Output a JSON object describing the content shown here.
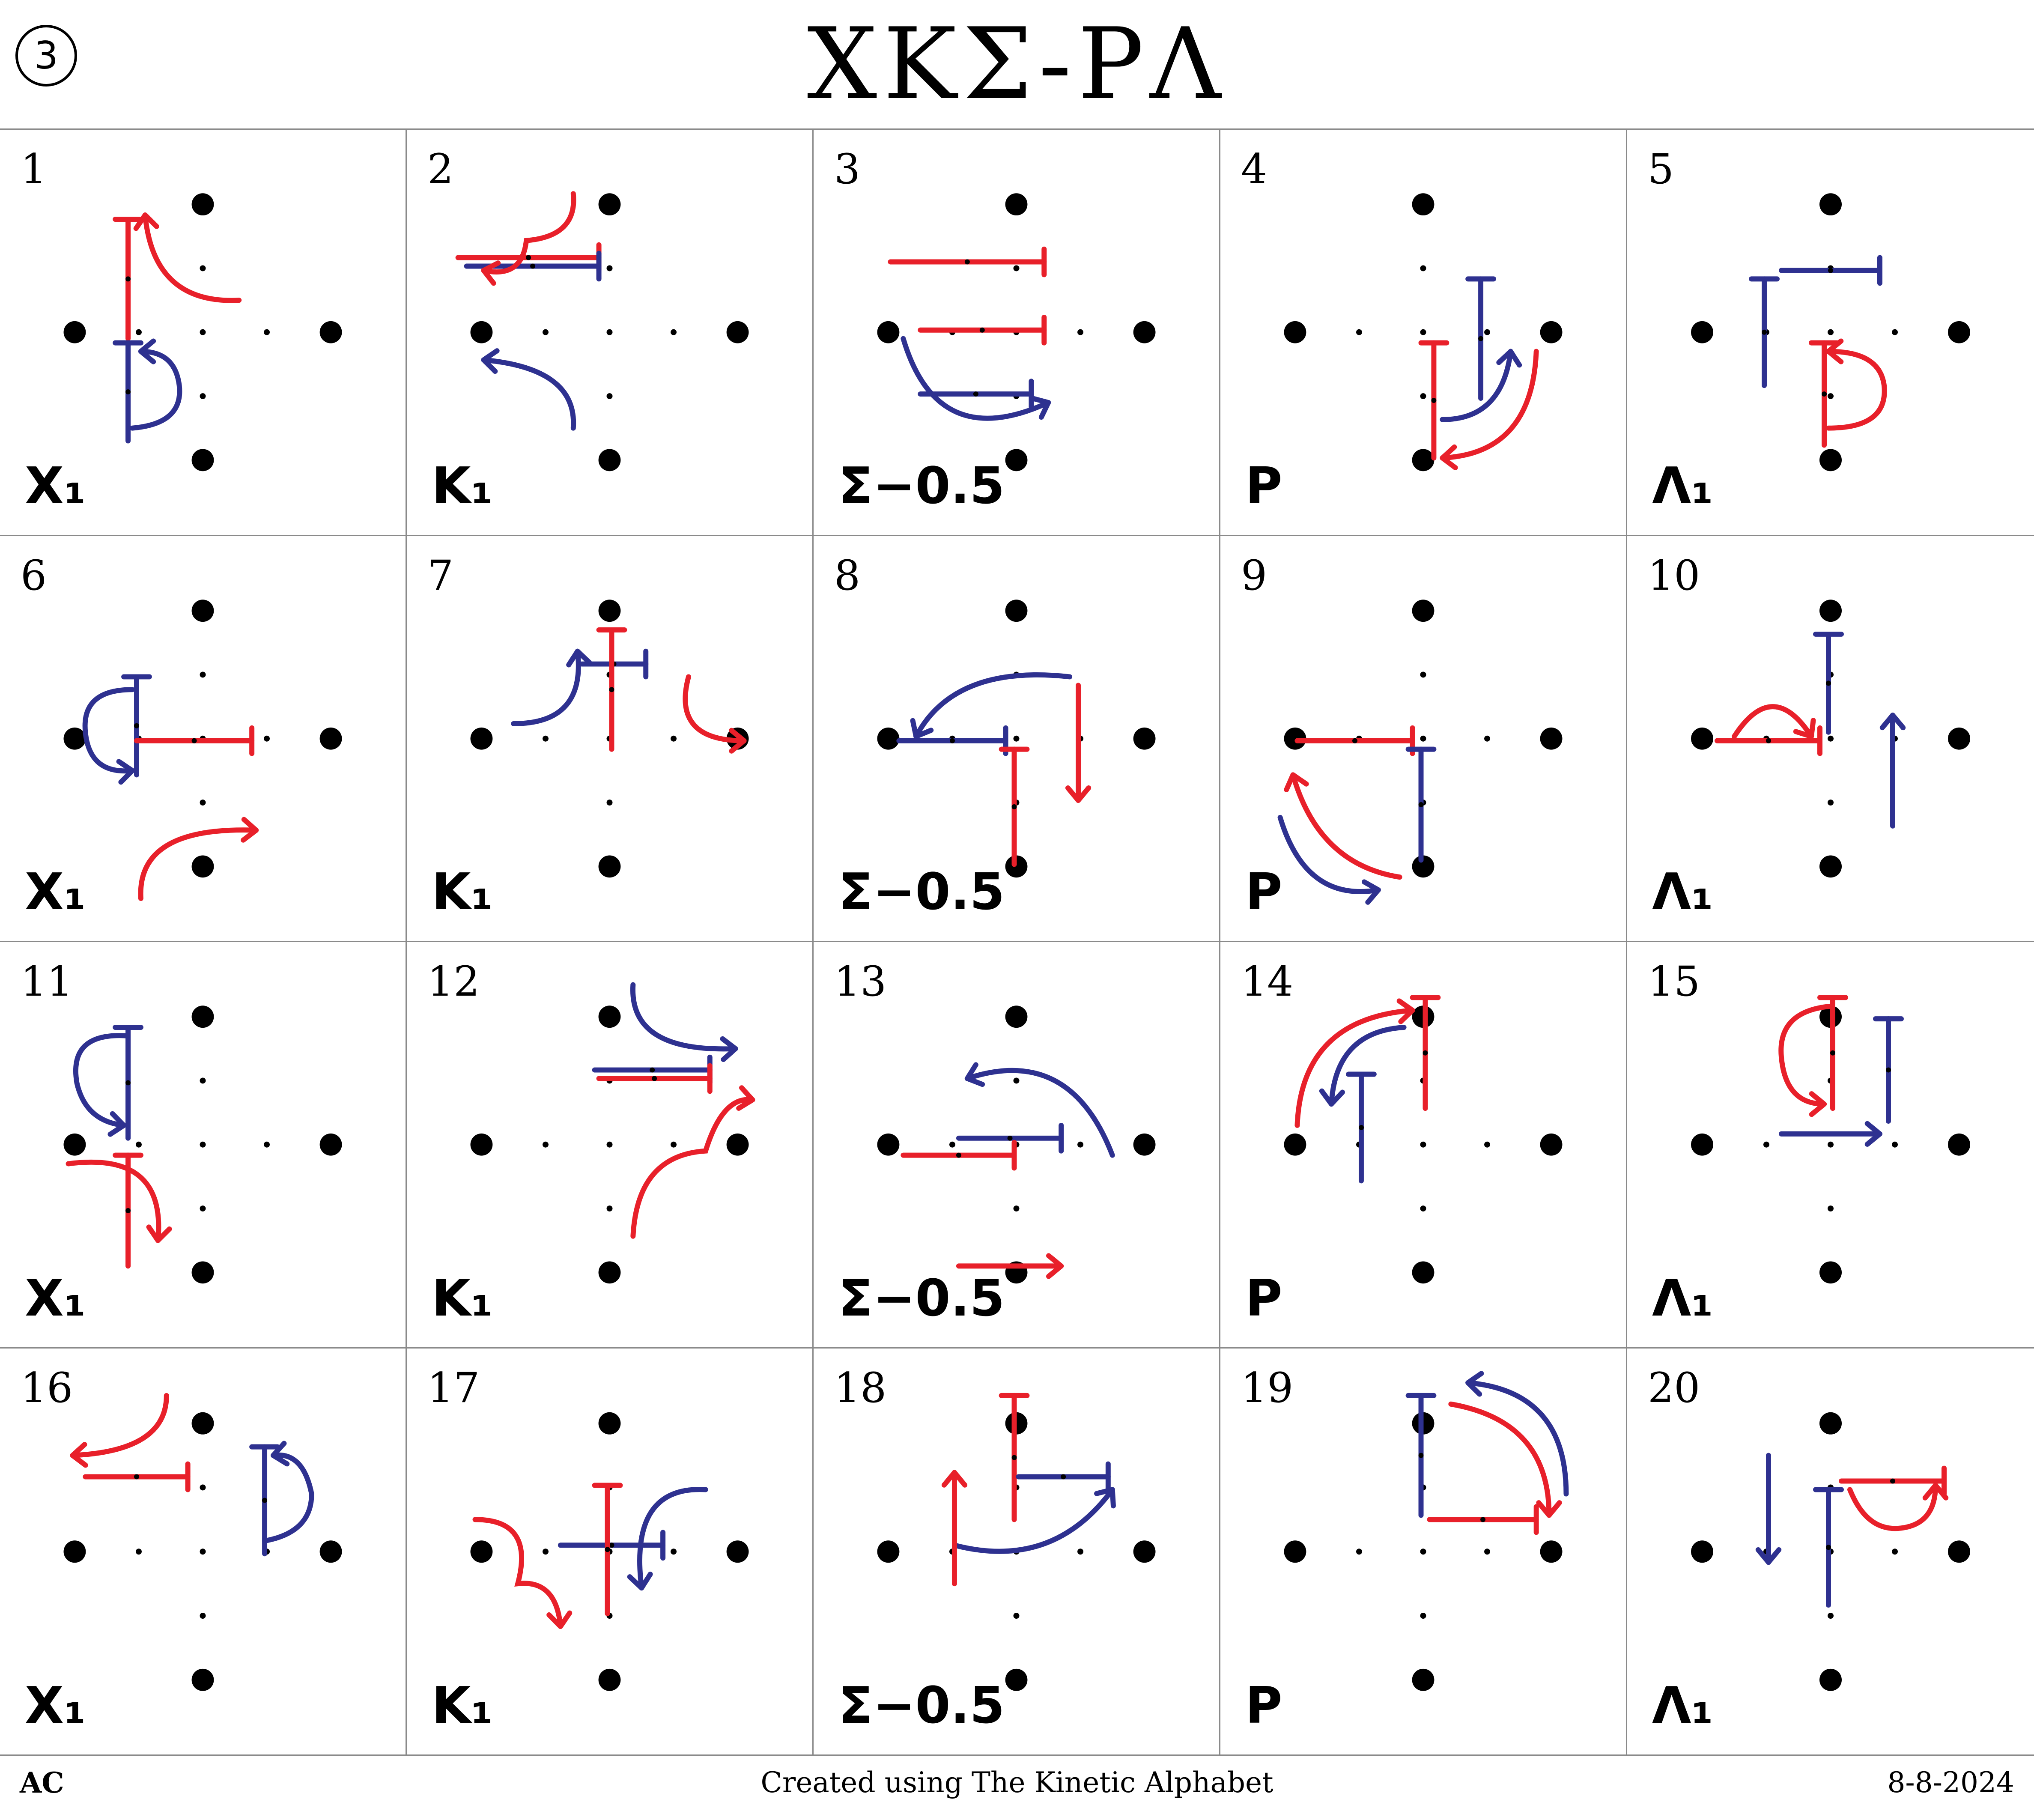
{
  "header": {
    "badge": "3",
    "title": "XKΣ-PΛ"
  },
  "colors": {
    "red": "#e8202a",
    "blue": "#2e3190",
    "ink": "#000000",
    "grid_line": "#8a8a8a"
  },
  "cells": [
    {
      "number": "1",
      "label": "X₁"
    },
    {
      "number": "2",
      "label": "K₁"
    },
    {
      "number": "3",
      "label": "Σ−0.5"
    },
    {
      "number": "4",
      "label": "P"
    },
    {
      "number": "5",
      "label": "Λ₁"
    },
    {
      "number": "6",
      "label": "X₁"
    },
    {
      "number": "7",
      "label": "K₁"
    },
    {
      "number": "8",
      "label": "Σ−0.5"
    },
    {
      "number": "9",
      "label": "P"
    },
    {
      "number": "10",
      "label": "Λ₁"
    },
    {
      "number": "11",
      "label": "X₁"
    },
    {
      "number": "12",
      "label": "K₁"
    },
    {
      "number": "13",
      "label": "Σ−0.5"
    },
    {
      "number": "14",
      "label": "P"
    },
    {
      "number": "15",
      "label": "Λ₁"
    },
    {
      "number": "16",
      "label": "X₁"
    },
    {
      "number": "17",
      "label": "K₁"
    },
    {
      "number": "18",
      "label": "Σ−0.5"
    },
    {
      "number": "19",
      "label": "P"
    },
    {
      "number": "20",
      "label": "Λ₁"
    }
  ],
  "footer": {
    "left": "AC",
    "center": "Created using The Kinetic Alphabet",
    "right": "8-8-2024"
  }
}
